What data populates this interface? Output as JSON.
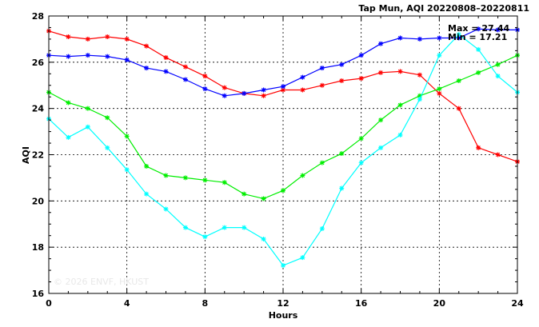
{
  "chart_data": {
    "type": "line",
    "title": "Tap Mun, AQI 20220808–20220811",
    "xlabel": "Hours",
    "ylabel": "AQI",
    "xlim": [
      0,
      24
    ],
    "ylim": [
      16,
      28
    ],
    "xticks": [
      0,
      4,
      8,
      12,
      16,
      20,
      24
    ],
    "yticks": [
      16,
      18,
      20,
      22,
      24,
      26,
      28
    ],
    "grid": true,
    "max_label": "Max = 27.44",
    "min_label": "Min = 17.21",
    "watermark": "© 2026 ENVF, HKUST",
    "x": [
      0,
      1,
      2,
      3,
      4,
      5,
      6,
      7,
      8,
      9,
      10,
      11,
      12,
      13,
      14,
      15,
      16,
      17,
      18,
      19,
      20,
      21,
      22,
      23,
      24
    ],
    "series": [
      {
        "color": "#ff0000",
        "values": [
          27.35,
          27.1,
          27.0,
          27.1,
          27.0,
          26.7,
          26.2,
          25.8,
          25.4,
          24.9,
          24.65,
          24.55,
          24.8,
          24.8,
          25.0,
          25.2,
          25.3,
          25.55,
          25.6,
          25.45,
          24.65,
          24.0,
          22.3,
          22.0,
          21.7
        ]
      },
      {
        "color": "#0000ff",
        "values": [
          26.3,
          26.25,
          26.3,
          26.25,
          26.1,
          25.75,
          25.6,
          25.25,
          24.85,
          24.55,
          24.65,
          24.8,
          24.95,
          25.35,
          25.75,
          25.9,
          26.3,
          26.8,
          27.05,
          27.0,
          27.05,
          27.05,
          27.44,
          27.4,
          27.4
        ]
      },
      {
        "color": "#00ee00",
        "values": [
          24.7,
          24.25,
          24.0,
          23.6,
          22.8,
          21.5,
          21.1,
          21.0,
          20.9,
          20.8,
          20.3,
          20.1,
          20.45,
          21.1,
          21.65,
          22.05,
          22.7,
          23.5,
          24.15,
          24.55,
          24.85,
          25.2,
          25.55,
          25.9,
          26.3
        ]
      },
      {
        "color": "#00ffff",
        "values": [
          23.55,
          22.75,
          23.2,
          22.3,
          21.35,
          20.3,
          19.65,
          18.85,
          18.45,
          18.85,
          18.85,
          18.35,
          17.21,
          17.55,
          18.8,
          20.55,
          21.65,
          22.3,
          22.85,
          24.4,
          26.3,
          27.2,
          26.55,
          25.4,
          24.7
        ]
      }
    ]
  }
}
